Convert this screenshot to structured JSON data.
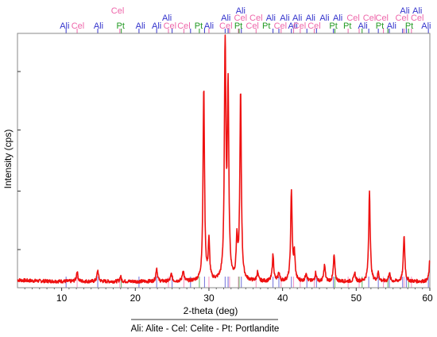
{
  "chart_data": {
    "type": "line",
    "title": "",
    "xlabel": "2-theta (deg)",
    "ylabel": "Intensity (cps)",
    "xlim": [
      4,
      60
    ],
    "ylim": [
      0,
      100
    ],
    "x_ticks": [
      10,
      20,
      30,
      40,
      50,
      60
    ],
    "x_tick_labels": [
      "10",
      "20",
      "30",
      "40",
      "50",
      "60"
    ],
    "y_tick_labels_shown": false,
    "grid": false,
    "legend_text": "Ali: Alite - Cel: Celite - Pt: Portlandite",
    "legend_placement": "bottom-center",
    "colors": {
      "pattern": "#ee1111",
      "ali": "#3333cc",
      "cel": "#ee66aa",
      "pt": "#229922"
    },
    "phases": [
      {
        "abbr": "Ali",
        "name": "Alite",
        "color": "#3333cc"
      },
      {
        "abbr": "Cel",
        "name": "Celite",
        "color": "#ee66aa"
      },
      {
        "abbr": "Pt",
        "name": "Portlandite",
        "color": "#229922"
      }
    ],
    "series": [
      {
        "values_note": "relative intensity, background ~2-3",
        "baseline": 2.5,
        "peaks": [
          {
            "x": 12.1,
            "y": 6.5
          },
          {
            "x": 14.9,
            "y": 7
          },
          {
            "x": 18.0,
            "y": 4.5
          },
          {
            "x": 22.9,
            "y": 8
          },
          {
            "x": 24.9,
            "y": 5.5
          },
          {
            "x": 26.5,
            "y": 7
          },
          {
            "x": 29.3,
            "y": 80
          },
          {
            "x": 30.0,
            "y": 18
          },
          {
            "x": 32.2,
            "y": 99
          },
          {
            "x": 32.6,
            "y": 78
          },
          {
            "x": 33.8,
            "y": 18
          },
          {
            "x": 34.3,
            "y": 78
          },
          {
            "x": 36.6,
            "y": 6
          },
          {
            "x": 38.7,
            "y": 13
          },
          {
            "x": 39.5,
            "y": 6
          },
          {
            "x": 41.2,
            "y": 39
          },
          {
            "x": 41.6,
            "y": 13
          },
          {
            "x": 43.2,
            "y": 6
          },
          {
            "x": 44.5,
            "y": 6
          },
          {
            "x": 45.7,
            "y": 9
          },
          {
            "x": 47.0,
            "y": 13
          },
          {
            "x": 49.8,
            "y": 6
          },
          {
            "x": 51.8,
            "y": 39
          },
          {
            "x": 53.0,
            "y": 6
          },
          {
            "x": 54.5,
            "y": 6
          },
          {
            "x": 56.5,
            "y": 21
          },
          {
            "x": 60.0,
            "y": 11
          }
        ]
      }
    ],
    "phase_markers": {
      "Ali": [
        10.6,
        14.9,
        20.5,
        22.9,
        25.0,
        27.5,
        29.4,
        32.2,
        32.6,
        34.4,
        38.7,
        39.5,
        41.2,
        43.3,
        44.6,
        46.9,
        51.7,
        53.0,
        54.5,
        56.3,
        56.8,
        59.8
      ],
      "Cel": [
        12.1,
        17.9,
        24.5,
        26.6,
        30.0,
        32.8,
        34.0,
        36.4,
        39.8,
        41.5,
        42.4,
        44.3,
        48.9,
        50.4,
        53.7,
        56.5,
        57.5
      ],
      "Pt": [
        18.1,
        28.7,
        34.1,
        47.1,
        50.8,
        54.3,
        57.1
      ]
    },
    "annotations": {
      "row1": [
        {
          "x": 10.4,
          "text": "Ali",
          "phase": "Ali"
        },
        {
          "x": 12.2,
          "text": "Cel",
          "phase": "Cel"
        },
        {
          "x": 15.0,
          "text": "Ali",
          "phase": "Ali"
        },
        {
          "x": 18.0,
          "text": "Pt",
          "phase": "Pt"
        },
        {
          "x": 20.7,
          "text": "Ali",
          "phase": "Ali"
        },
        {
          "x": 22.9,
          "text": "Ali",
          "phase": "Ali"
        },
        {
          "x": 24.7,
          "text": "Cel",
          "phase": "Cel"
        },
        {
          "x": 26.6,
          "text": "Cel",
          "phase": "Cel"
        },
        {
          "x": 28.6,
          "text": "Pt",
          "phase": "Pt"
        },
        {
          "x": 30.0,
          "text": "Ali",
          "phase": "Ali"
        },
        {
          "x": 32.3,
          "text": "Cel",
          "phase": "Cel"
        },
        {
          "x": 34.0,
          "text": "Pt",
          "phase": "Pt"
        },
        {
          "x": 35.9,
          "text": "Cel",
          "phase": "Cel"
        },
        {
          "x": 37.8,
          "text": "Pt",
          "phase": "Pt"
        },
        {
          "x": 39.7,
          "text": "Cel",
          "phase": "Cel"
        },
        {
          "x": 41.4,
          "text": "Ali",
          "phase": "Ali"
        },
        {
          "x": 42.3,
          "text": "Cel",
          "phase": "Cel"
        },
        {
          "x": 44.3,
          "text": "Cel",
          "phase": "Cel"
        },
        {
          "x": 46.9,
          "text": "Pt",
          "phase": "Pt"
        },
        {
          "x": 48.8,
          "text": "Pt",
          "phase": "Pt"
        },
        {
          "x": 50.9,
          "text": "Ali",
          "phase": "Ali"
        },
        {
          "x": 53.2,
          "text": "Pt",
          "phase": "Pt"
        },
        {
          "x": 54.8,
          "text": "Ali",
          "phase": "Ali"
        },
        {
          "x": 57.2,
          "text": "Pt",
          "phase": "Pt"
        },
        {
          "x": 59.5,
          "text": "Ali",
          "phase": "Ali"
        }
      ],
      "row2": [
        {
          "x": 24.3,
          "text": "Ali",
          "phase": "Ali"
        },
        {
          "x": 32.3,
          "text": "Ali",
          "phase": "Ali"
        },
        {
          "x": 34.3,
          "text": "Cel",
          "phase": "Cel"
        },
        {
          "x": 36.4,
          "text": "Cel",
          "phase": "Cel"
        },
        {
          "x": 38.4,
          "text": "Ali",
          "phase": "Ali"
        },
        {
          "x": 40.3,
          "text": "Ali",
          "phase": "Ali"
        },
        {
          "x": 42.0,
          "text": "Ali",
          "phase": "Ali"
        },
        {
          "x": 43.8,
          "text": "Ali",
          "phase": "Ali"
        },
        {
          "x": 45.7,
          "text": "Ali",
          "phase": "Ali"
        },
        {
          "x": 47.5,
          "text": "Ali",
          "phase": "Ali"
        },
        {
          "x": 49.6,
          "text": "Cel",
          "phase": "Cel"
        },
        {
          "x": 51.8,
          "text": "Cel",
          "phase": "Cel"
        },
        {
          "x": 53.5,
          "text": "Cel",
          "phase": "Cel"
        },
        {
          "x": 56.2,
          "text": "Cel",
          "phase": "Cel"
        },
        {
          "x": 58.3,
          "text": "Cel",
          "phase": "Cel"
        }
      ],
      "row3": [
        {
          "x": 17.6,
          "text": "Cel",
          "phase": "Cel"
        },
        {
          "x": 34.3,
          "text": "Ali",
          "phase": "Ali"
        },
        {
          "x": 56.6,
          "text": "Ali",
          "phase": "Ali"
        },
        {
          "x": 58.3,
          "text": "Ali",
          "phase": "Ali"
        }
      ]
    }
  }
}
